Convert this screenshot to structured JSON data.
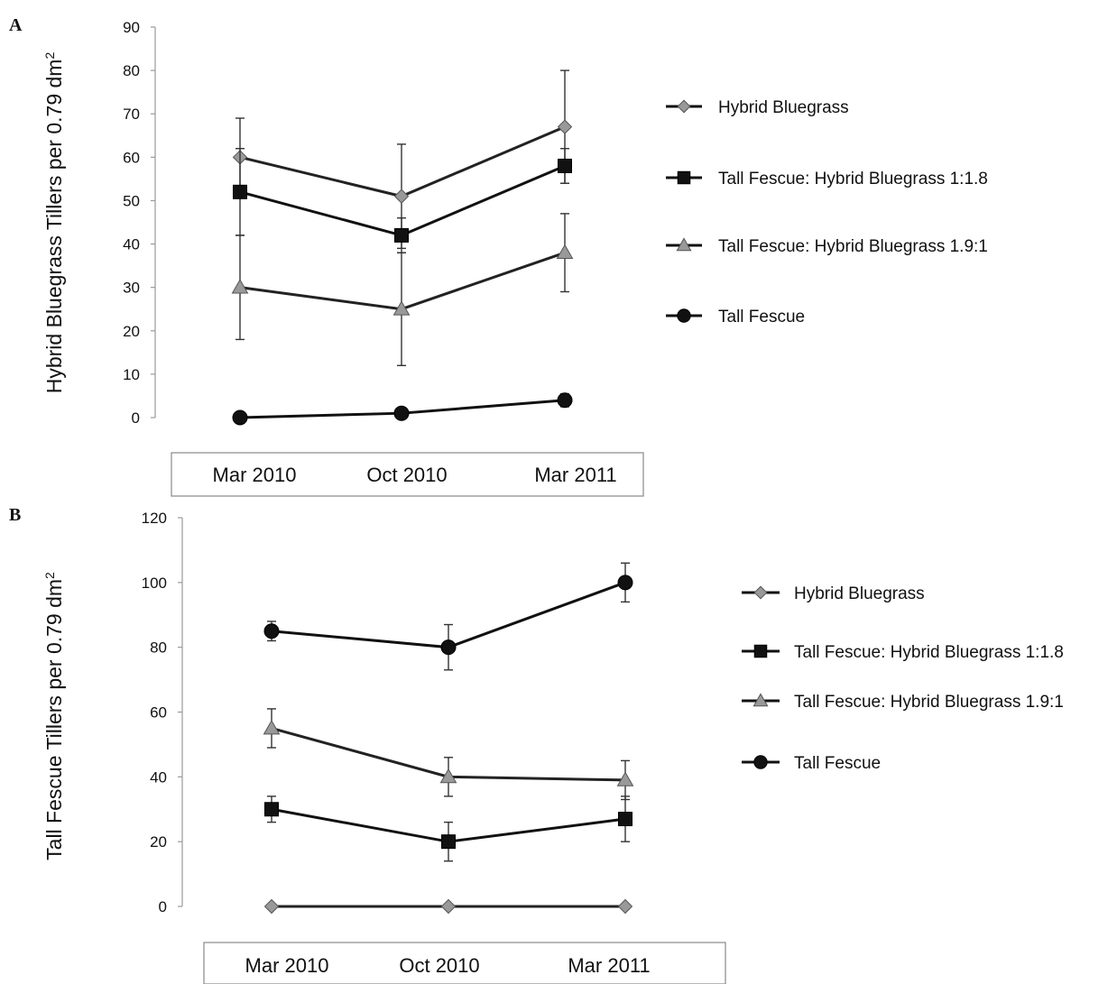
{
  "chart_data": [
    {
      "panel": "A",
      "type": "line",
      "ylabel": "Hybrid Bluegrass Tillers  per 0.79 dm",
      "ylabel_sup": "2",
      "ylim": [
        0,
        90
      ],
      "yticks": [
        "0",
        "10",
        "20",
        "30",
        "40",
        "50",
        "60",
        "70",
        "80",
        "90"
      ],
      "categories": [
        "Mar 2010",
        "Oct 2010",
        "Mar 2011"
      ],
      "legend_position": "right",
      "series": [
        {
          "name": "Hybrid Bluegrass",
          "marker": "diamond",
          "color": "#999999",
          "values": [
            60,
            51,
            67
          ],
          "err": [
            9,
            12,
            13
          ]
        },
        {
          "name": "Tall Fescue: Hybrid Bluegrass 1:1.8",
          "marker": "square",
          "color": "#111111",
          "values": [
            52,
            42,
            58
          ],
          "err": [
            10,
            4,
            4
          ]
        },
        {
          "name": "Tall Fescue: Hybrid Bluegrass 1.9:1",
          "marker": "triangle",
          "color": "#999999",
          "values": [
            30,
            25,
            38
          ],
          "err": [
            12,
            13,
            9
          ]
        },
        {
          "name": "Tall Fescue",
          "marker": "circle",
          "color": "#111111",
          "values": [
            0,
            1,
            4
          ],
          "err": [
            0,
            0,
            1.5
          ]
        }
      ]
    },
    {
      "panel": "B",
      "type": "line",
      "ylabel": "Tall Fescue Tillers per 0.79 dm",
      "ylabel_sup": "2",
      "ylim": [
        0,
        120
      ],
      "yticks": [
        "0",
        "20",
        "40",
        "60",
        "80",
        "100",
        "120"
      ],
      "categories": [
        "Mar 2010",
        "Oct 2010",
        "Mar 2011"
      ],
      "legend_position": "right",
      "series": [
        {
          "name": "Hybrid Bluegrass",
          "marker": "diamond",
          "color": "#999999",
          "values": [
            0,
            0,
            0
          ],
          "err": [
            0,
            0,
            0
          ]
        },
        {
          "name": "Tall Fescue: Hybrid Bluegrass 1:1.8",
          "marker": "square",
          "color": "#111111",
          "values": [
            30,
            20,
            27
          ],
          "err": [
            4,
            6,
            7
          ]
        },
        {
          "name": "Tall Fescue: Hybrid Bluegrass 1.9:1",
          "marker": "triangle",
          "color": "#999999",
          "values": [
            55,
            40,
            39
          ],
          "err": [
            6,
            6,
            6
          ]
        },
        {
          "name": "Tall Fescue",
          "marker": "circle",
          "color": "#111111",
          "values": [
            85,
            80,
            100
          ],
          "err": [
            3,
            7,
            6
          ]
        }
      ]
    }
  ]
}
